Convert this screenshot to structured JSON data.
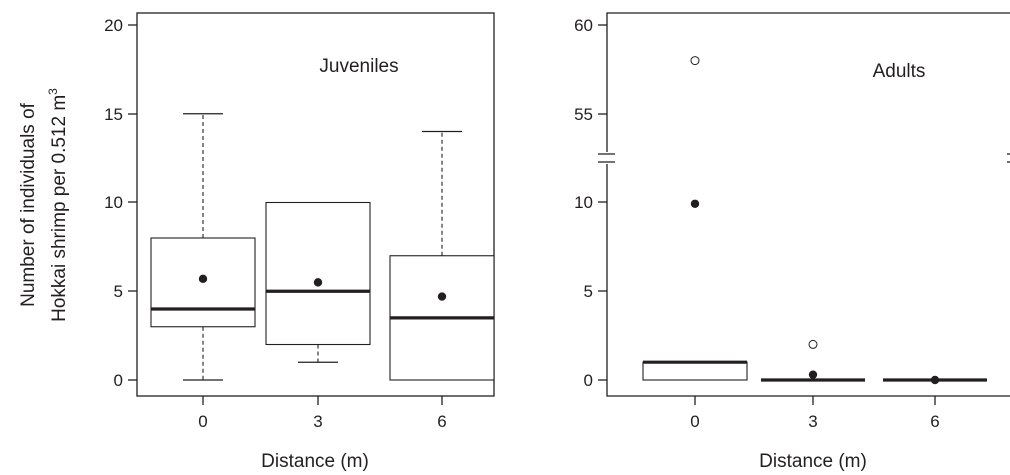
{
  "y_axis_title": {
    "line1": "Number of individuals of",
    "line2_prefix": "Hokkai shrimp per 0.512 m",
    "line2_superscript": "3"
  },
  "chart_data": [
    {
      "type": "boxplot",
      "panel_label": "Juveniles",
      "xlabel": "Distance (m)",
      "categories": [
        "0",
        "3",
        "6"
      ],
      "ylim": [
        -1,
        21
      ],
      "yticks": [
        0,
        5,
        10,
        15,
        20
      ],
      "ytick_labels": [
        "0",
        "5",
        "10",
        "15",
        "20"
      ],
      "axis_break": false,
      "boxes": [
        {
          "category": "0",
          "whisker_low": 0,
          "q1": 3,
          "median": 4,
          "q3": 8,
          "whisker_high": 15,
          "mean": 5.7,
          "outliers": []
        },
        {
          "category": "3",
          "whisker_low": 1,
          "q1": 2,
          "median": 5,
          "q3": 10,
          "whisker_high": 10,
          "mean": 5.5,
          "outliers": []
        },
        {
          "category": "6",
          "whisker_low": 0,
          "q1": 0,
          "median": 3.5,
          "q3": 7,
          "whisker_high": 14,
          "mean": 4.7,
          "outliers": []
        }
      ],
      "colors": {
        "line": "#231f20",
        "mean_marker": "#231f20"
      }
    },
    {
      "type": "boxplot",
      "panel_label": "Adults",
      "xlabel": "Distance (m)",
      "categories": [
        "0",
        "3",
        "6"
      ],
      "ylim": [
        -1,
        61
      ],
      "yticks": [
        0,
        5,
        10,
        55,
        60
      ],
      "ytick_labels": [
        "0",
        "5",
        "10",
        "55",
        "60"
      ],
      "axis_break": true,
      "break_between": [
        12,
        53
      ],
      "boxes": [
        {
          "category": "0",
          "whisker_low": 0,
          "q1": 0,
          "median": 1,
          "q3": 1,
          "whisker_high": 1,
          "mean": 9.9,
          "outliers": [
            58
          ]
        },
        {
          "category": "3",
          "whisker_low": 0,
          "q1": 0,
          "median": 0,
          "q3": 0,
          "whisker_high": 0,
          "mean": 0.3,
          "outliers": [
            2
          ]
        },
        {
          "category": "6",
          "whisker_low": 0,
          "q1": 0,
          "median": 0,
          "q3": 0,
          "whisker_high": 0,
          "mean": 0,
          "outliers": []
        }
      ],
      "colors": {
        "line": "#231f20",
        "mean_marker": "#231f20"
      }
    }
  ]
}
